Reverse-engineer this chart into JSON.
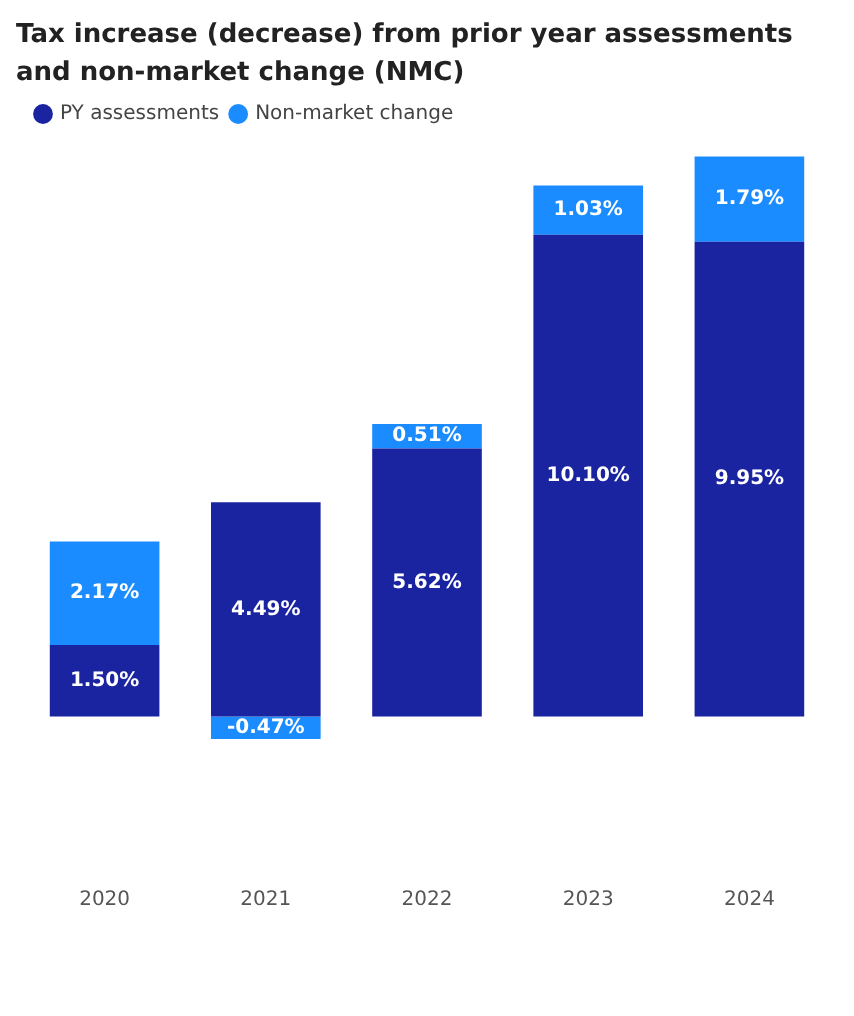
{
  "chart_data": {
    "type": "bar",
    "title": "Tax increase (decrease) from prior year assessments and non-market change (NMC)",
    "categories": [
      "2020",
      "2021",
      "2022",
      "2023",
      "2024"
    ],
    "stacked": true,
    "series": [
      {
        "name": "PY assessments",
        "color": "#1a23a0",
        "values": [
          1.5,
          4.49,
          5.62,
          10.1,
          9.95
        ],
        "value_labels": [
          "1.50%",
          "4.49%",
          "5.62%",
          "10.10%",
          "9.95%"
        ]
      },
      {
        "name": "Non-market change",
        "color": "#1a8cff",
        "values": [
          2.17,
          -0.47,
          0.51,
          1.03,
          1.79
        ],
        "value_labels": [
          "2.17%",
          "-0.47%",
          "0.51%",
          "1.03%",
          "1.79%"
        ]
      }
    ],
    "legend": "top left",
    "grid": false
  }
}
